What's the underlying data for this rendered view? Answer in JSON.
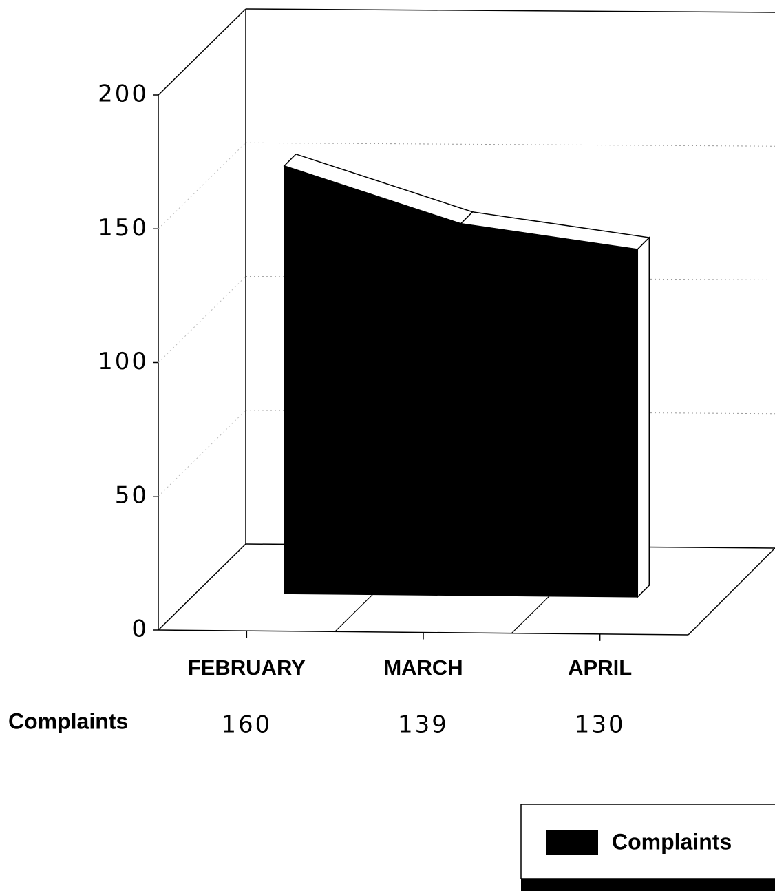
{
  "chart_data": {
    "type": "area",
    "categories": [
      "FEBRUARY",
      "MARCH",
      "APRIL"
    ],
    "series": [
      {
        "name": "Complaints",
        "color": "#000000",
        "values": [
          160,
          139,
          130
        ]
      }
    ],
    "ylim": [
      0,
      200
    ],
    "yticks": [
      0,
      50,
      100,
      150,
      200
    ],
    "grid": true
  }
}
